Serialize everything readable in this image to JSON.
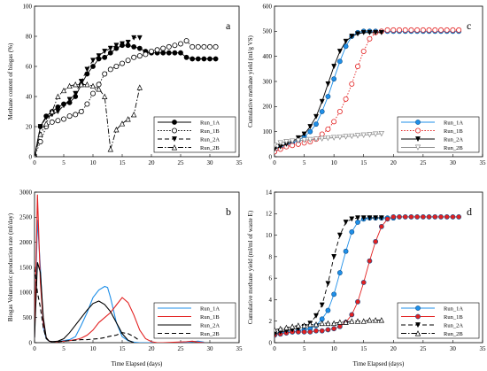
{
  "chart_data": [
    {
      "panel": "a",
      "type": "line",
      "ylabel": "Methane content of biogas (%)",
      "xlabel": "",
      "xlim": [
        0,
        35
      ],
      "ylim": [
        0,
        100
      ],
      "xticks": [
        0,
        5,
        10,
        15,
        20,
        25,
        30,
        35
      ],
      "yticks": [
        0,
        20,
        40,
        60,
        80,
        100
      ],
      "legend_position": "bottom-right",
      "series": [
        {
          "name": "Run_1A",
          "color": "#000000",
          "marker": "filled-circle",
          "dash": "solid",
          "x": [
            0,
            1,
            2,
            3,
            4,
            5,
            6,
            7,
            8,
            9,
            10,
            11,
            12,
            13,
            14,
            15,
            16,
            17,
            18,
            19,
            20,
            21,
            22,
            23,
            24,
            25,
            26,
            27,
            28,
            29,
            30,
            31
          ],
          "y": [
            0,
            20,
            27,
            30,
            33,
            35,
            36,
            40,
            48,
            55,
            60,
            65,
            66,
            69,
            72,
            74,
            74,
            73,
            72,
            70,
            69,
            69,
            69,
            69,
            69,
            69,
            66,
            65,
            65,
            65,
            65,
            65
          ]
        },
        {
          "name": "Run_1B",
          "color": "#000000",
          "marker": "open-circle",
          "dash": "dotted",
          "x": [
            0,
            1,
            2,
            3,
            4,
            5,
            6,
            7,
            8,
            9,
            10,
            11,
            12,
            13,
            14,
            15,
            16,
            17,
            18,
            19,
            20,
            21,
            22,
            23,
            24,
            25,
            26,
            27,
            28,
            29,
            30,
            31
          ],
          "y": [
            0,
            10,
            20,
            23,
            24,
            25,
            27,
            28,
            30,
            35,
            42,
            48,
            55,
            58,
            60,
            62,
            64,
            66,
            67,
            68,
            70,
            71,
            72,
            73,
            74,
            75,
            77,
            73,
            73,
            73,
            73,
            73
          ]
        },
        {
          "name": "Run_2A",
          "color": "#000000",
          "marker": "filled-triangle-down",
          "dash": "dashed",
          "x": [
            0,
            1,
            2,
            3,
            4,
            5,
            6,
            7,
            8,
            9,
            10,
            11,
            12,
            13,
            14,
            15,
            16,
            17,
            18
          ],
          "y": [
            0,
            20,
            26,
            28,
            30,
            34,
            38,
            42,
            50,
            58,
            64,
            67,
            70,
            72,
            74,
            75,
            76,
            79,
            79
          ]
        },
        {
          "name": "Run_2B",
          "color": "#000000",
          "marker": "open-triangle-up",
          "dash": "dashdot",
          "x": [
            0,
            1,
            2,
            3,
            4,
            5,
            6,
            7,
            8,
            9,
            10,
            11,
            12,
            13,
            14,
            15,
            16,
            17,
            18
          ],
          "y": [
            0,
            15,
            22,
            30,
            40,
            44,
            47,
            48,
            48,
            48,
            47,
            45,
            40,
            5,
            18,
            22,
            25,
            28,
            46
          ]
        }
      ]
    },
    {
      "panel": "b",
      "type": "line",
      "ylabel": "Biogas Volumetric production rate (ml/day)",
      "xlabel": "Time Elapsed (days)",
      "xlim": [
        0,
        35
      ],
      "ylim": [
        0,
        3000
      ],
      "xticks": [
        0,
        5,
        10,
        15,
        20,
        25,
        30,
        35
      ],
      "yticks": [
        0,
        500,
        1000,
        1500,
        2000,
        2500,
        3000
      ],
      "legend_position": "bottom-right",
      "series": [
        {
          "name": "Run_1A",
          "color": "#1f8fe8",
          "dash": "solid",
          "x": [
            0,
            0.5,
            1,
            1.5,
            2,
            2.5,
            3,
            4,
            5,
            6,
            7,
            8,
            9,
            10,
            11,
            12,
            12.5,
            13,
            14,
            15,
            16,
            17,
            18,
            26,
            27,
            28,
            29
          ],
          "y": [
            100,
            2450,
            1500,
            300,
            80,
            30,
            20,
            20,
            40,
            60,
            120,
            350,
            600,
            900,
            1050,
            1120,
            1100,
            900,
            400,
            120,
            40,
            10,
            0,
            0,
            20,
            30,
            10
          ]
        },
        {
          "name": "Run_1B",
          "color": "#e32020",
          "dash": "solid",
          "x": [
            0,
            0.5,
            1,
            1.5,
            2,
            2.5,
            3,
            4,
            5,
            6,
            7,
            8,
            9,
            10,
            11,
            12,
            13,
            14,
            15,
            16,
            17,
            18,
            19,
            20,
            21,
            22,
            26,
            27,
            28,
            29
          ],
          "y": [
            100,
            2950,
            1200,
            400,
            100,
            30,
            20,
            20,
            30,
            40,
            60,
            90,
            150,
            250,
            400,
            500,
            600,
            750,
            900,
            800,
            550,
            250,
            80,
            20,
            0,
            0,
            20,
            30,
            10,
            0
          ]
        },
        {
          "name": "Run_2A",
          "color": "#000000",
          "dash": "solid",
          "x": [
            0,
            0.5,
            1,
            1.5,
            2,
            2.5,
            3,
            4,
            5,
            6,
            7,
            8,
            9,
            10,
            11,
            12,
            13,
            14,
            15,
            16,
            17
          ],
          "y": [
            100,
            1600,
            1400,
            500,
            100,
            30,
            20,
            30,
            80,
            200,
            350,
            500,
            650,
            780,
            830,
            760,
            620,
            400,
            180,
            50,
            0
          ]
        },
        {
          "name": "Run_2B",
          "color": "#000000",
          "dash": "dashed",
          "x": [
            0,
            0.5,
            1,
            1.5,
            2,
            2.5,
            3,
            4,
            5,
            6,
            7,
            8,
            9,
            10,
            11,
            12,
            13,
            14,
            15,
            16,
            17,
            18
          ],
          "y": [
            1500,
            1000,
            700,
            300,
            80,
            30,
            20,
            20,
            30,
            40,
            50,
            60,
            60,
            70,
            80,
            100,
            130,
            150,
            200,
            180,
            120,
            40
          ]
        }
      ]
    },
    {
      "panel": "c",
      "type": "line",
      "ylabel": "Cumulative methane yield (ml/g VS)",
      "xlabel": "",
      "xlim": [
        0,
        35
      ],
      "ylim": [
        0,
        600
      ],
      "xticks": [
        0,
        5,
        10,
        15,
        20,
        25,
        30,
        35
      ],
      "yticks": [
        0,
        100,
        200,
        300,
        400,
        500,
        600
      ],
      "legend_position": "bottom-right",
      "series": [
        {
          "name": "Run_1A",
          "color": "#1f8fe8",
          "marker": "filled-circle",
          "dash": "solid",
          "x": [
            0,
            1,
            2,
            3,
            4,
            5,
            6,
            7,
            8,
            9,
            10,
            11,
            12,
            13,
            14,
            15,
            16,
            17,
            18,
            19,
            20,
            21,
            22,
            23,
            24,
            25,
            26,
            27,
            28,
            29,
            30,
            31
          ],
          "y": [
            20,
            35,
            45,
            55,
            65,
            80,
            100,
            130,
            180,
            240,
            310,
            380,
            440,
            480,
            495,
            500,
            500,
            500,
            500,
            500,
            500,
            500,
            500,
            500,
            500,
            500,
            500,
            500,
            500,
            500,
            500,
            500
          ]
        },
        {
          "name": "Run_1B",
          "color": "#e32020",
          "marker": "open-circle",
          "dash": "dotted",
          "x": [
            0,
            1,
            2,
            3,
            4,
            5,
            6,
            7,
            8,
            9,
            10,
            11,
            12,
            13,
            14,
            15,
            16,
            17,
            18,
            19,
            20,
            21,
            22,
            23,
            24,
            25,
            26,
            27,
            28,
            29,
            30,
            31
          ],
          "y": [
            20,
            30,
            40,
            45,
            50,
            55,
            60,
            70,
            90,
            110,
            140,
            180,
            230,
            290,
            360,
            420,
            470,
            495,
            500,
            505,
            505,
            505,
            505,
            505,
            505,
            505,
            505,
            505,
            505,
            505,
            505,
            505
          ]
        },
        {
          "name": "Run_2A",
          "color": "#000000",
          "marker": "filled-triangle-down",
          "dash": "solid",
          "x": [
            0,
            1,
            2,
            3,
            4,
            5,
            6,
            7,
            8,
            9,
            10,
            11,
            12,
            13,
            14,
            15,
            16,
            17,
            18
          ],
          "y": [
            30,
            40,
            50,
            60,
            75,
            90,
            120,
            160,
            220,
            290,
            360,
            420,
            460,
            480,
            490,
            495,
            495,
            495,
            495
          ]
        },
        {
          "name": "Run_2B",
          "color": "#8c8c8c",
          "marker": "open-triangle-down",
          "dash": "solid",
          "x": [
            0,
            1,
            2,
            3,
            4,
            5,
            6,
            7,
            8,
            9,
            10,
            11,
            12,
            13,
            14,
            15,
            16,
            17,
            18
          ],
          "y": [
            45,
            55,
            60,
            62,
            64,
            66,
            68,
            70,
            72,
            74,
            76,
            78,
            80,
            82,
            84,
            86,
            88,
            90,
            92
          ]
        }
      ]
    },
    {
      "panel": "d",
      "type": "line",
      "ylabel": "Cumulative methane yield (ml/ml of waste E)",
      "xlabel": "Time Elapsed (days)",
      "xlim": [
        0,
        35
      ],
      "ylim": [
        0,
        14
      ],
      "xticks": [
        0,
        5,
        10,
        15,
        20,
        25,
        30,
        35
      ],
      "yticks": [
        0,
        2,
        4,
        6,
        8,
        10,
        12,
        14
      ],
      "legend_position": "bottom-right",
      "series": [
        {
          "name": "Run_1A",
          "color": "#1f8fe8",
          "marker": "filled-circle",
          "dash": "solid",
          "x": [
            0,
            1,
            2,
            3,
            4,
            5,
            6,
            7,
            8,
            9,
            10,
            11,
            12,
            13,
            14,
            15,
            16,
            17,
            18,
            19,
            20
          ],
          "y": [
            0.7,
            0.9,
            1.0,
            1.0,
            1.1,
            1.2,
            1.3,
            1.6,
            2.2,
            3.0,
            4.5,
            6.5,
            8.5,
            10.3,
            11.2,
            11.5,
            11.6,
            11.6,
            11.6,
            11.6,
            11.6
          ]
        },
        {
          "name": "Run_1B",
          "color": "#e32020",
          "marker": "filled-circle",
          "dash": "solid",
          "x": [
            0,
            1,
            2,
            3,
            4,
            5,
            6,
            7,
            8,
            9,
            10,
            11,
            12,
            13,
            14,
            15,
            16,
            17,
            18,
            19,
            20,
            21,
            22,
            23,
            24,
            25,
            26,
            27,
            28,
            29,
            30,
            31
          ],
          "y": [
            0.7,
            0.8,
            0.9,
            1.0,
            1.0,
            1.0,
            1.0,
            1.1,
            1.1,
            1.2,
            1.3,
            1.5,
            1.9,
            2.6,
            3.8,
            5.6,
            7.6,
            9.4,
            10.8,
            11.5,
            11.7,
            11.7,
            11.7,
            11.7,
            11.7,
            11.7,
            11.7,
            11.7,
            11.7,
            11.7,
            11.7,
            11.7
          ]
        },
        {
          "name": "Run_2A",
          "color": "#000000",
          "marker": "filled-triangle-down",
          "dash": "dashed",
          "x": [
            0,
            1,
            2,
            3,
            4,
            5,
            6,
            7,
            8,
            9,
            10,
            11,
            12,
            13,
            14,
            15,
            16,
            17,
            18
          ],
          "y": [
            0.8,
            1.0,
            1.1,
            1.2,
            1.3,
            1.5,
            1.8,
            2.5,
            3.5,
            5.5,
            8.0,
            10.0,
            11.2,
            11.5,
            11.6,
            11.6,
            11.6,
            11.6,
            11.6
          ]
        },
        {
          "name": "Run_2B",
          "color": "#000000",
          "marker": "open-triangle-up",
          "dash": "dashdot",
          "x": [
            0,
            1,
            2,
            3,
            4,
            5,
            6,
            7,
            8,
            9,
            10,
            11,
            12,
            13,
            14,
            15,
            16,
            17,
            18
          ],
          "y": [
            1.2,
            1.3,
            1.4,
            1.5,
            1.6,
            1.6,
            1.7,
            1.7,
            1.8,
            1.8,
            1.8,
            1.9,
            1.9,
            2.0,
            2.0,
            2.0,
            2.1,
            2.1,
            2.1
          ]
        }
      ]
    }
  ]
}
